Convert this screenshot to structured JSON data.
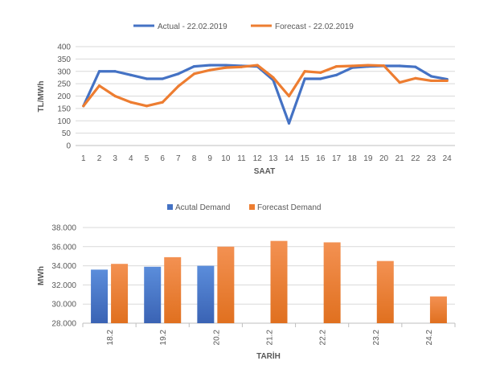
{
  "chart_data": [
    {
      "type": "line",
      "title": "",
      "xlabel": "SAAT",
      "ylabel": "TL/MWh",
      "ylim": [
        0,
        400
      ],
      "yticks": [
        0,
        50,
        100,
        150,
        200,
        250,
        300,
        350,
        400
      ],
      "grid": true,
      "legend_position": "top-center",
      "x": [
        "1",
        "2",
        "3",
        "4",
        "5",
        "6",
        "7",
        "8",
        "9",
        "10",
        "11",
        "12",
        "13",
        "14",
        "15",
        "16",
        "17",
        "18",
        "19",
        "20",
        "21",
        "22",
        "23",
        "24"
      ],
      "series": [
        {
          "name": "Actual - 22.02.2019",
          "color": "#4472C4",
          "values": [
            160,
            300,
            300,
            285,
            270,
            270,
            290,
            320,
            325,
            325,
            322,
            320,
            265,
            90,
            270,
            270,
            285,
            315,
            320,
            322,
            322,
            318,
            280,
            268
          ]
        },
        {
          "name": "Forecast - 22.02.2019",
          "color": "#ED7D31",
          "values": [
            160,
            242,
            200,
            175,
            160,
            175,
            240,
            290,
            305,
            315,
            318,
            325,
            275,
            200,
            300,
            295,
            320,
            322,
            325,
            323,
            255,
            272,
            262,
            262
          ]
        }
      ]
    },
    {
      "type": "bar",
      "title": "",
      "xlabel": "TARİH",
      "ylabel": "MWh",
      "ylim": [
        28000,
        38000
      ],
      "yticks": [
        "28.000",
        "30.000",
        "32.000",
        "34.000",
        "36.000",
        "38.000"
      ],
      "grid": true,
      "legend_position": "top-center",
      "categories": [
        "18.2",
        "19.2",
        "20.2",
        "21.2",
        "22.2",
        "23.2",
        "24.2"
      ],
      "series": [
        {
          "name": "Acutal Demand",
          "color": "#4472C4",
          "values": [
            33600,
            33900,
            34000,
            null,
            null,
            null,
            null
          ]
        },
        {
          "name": "Forecast Demand",
          "color": "#ED7D31",
          "values": [
            34200,
            34900,
            36000,
            36600,
            36450,
            34500,
            30800
          ]
        }
      ]
    }
  ]
}
